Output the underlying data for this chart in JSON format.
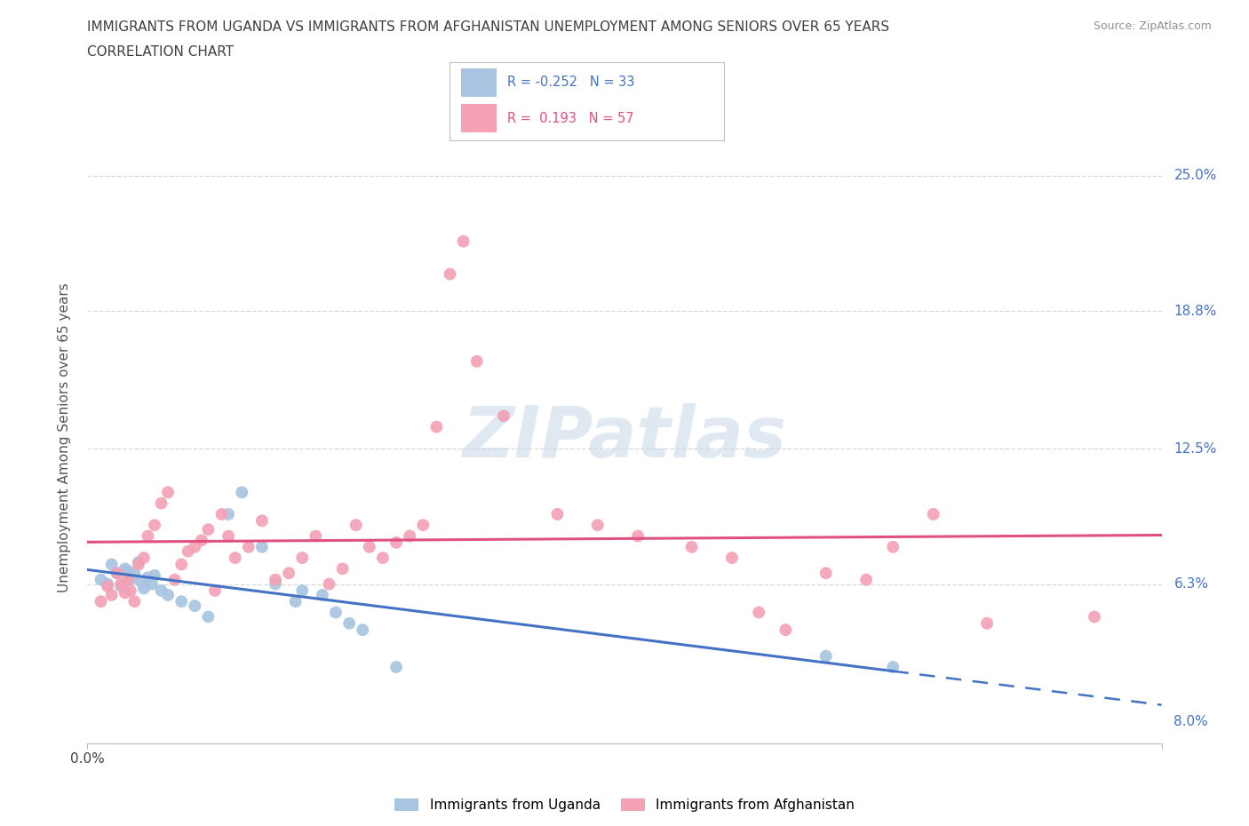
{
  "title_line1": "IMMIGRANTS FROM UGANDA VS IMMIGRANTS FROM AFGHANISTAN UNEMPLOYMENT AMONG SENIORS OVER 65 YEARS",
  "title_line2": "CORRELATION CHART",
  "source": "Source: ZipAtlas.com",
  "ylabel": "Unemployment Among Seniors over 65 years",
  "ytick_values": [
    0.0,
    6.3,
    12.5,
    18.8,
    25.0
  ],
  "ytick_labels": [
    "0.0%",
    "6.3%",
    "12.5%",
    "18.8%",
    "25.0%"
  ],
  "xlim": [
    0.0,
    8.0
  ],
  "ylim": [
    -1.0,
    27.0
  ],
  "legend_r_uganda": "-0.252",
  "legend_n_uganda": "33",
  "legend_r_afghanistan": "0.193",
  "legend_n_afghanistan": "57",
  "uganda_color": "#a8c4e0",
  "afghanistan_color": "#f4a0b5",
  "uganda_line_color": "#4472c4",
  "afghanistan_line_color": "#e05080",
  "watermark": "ZIPatlas",
  "title_color": "#404040",
  "source_color": "#909090",
  "right_label_color": "#4472c4",
  "grid_color": "#d8d8d8",
  "uganda_points": [
    [
      0.1,
      6.5
    ],
    [
      0.15,
      6.3
    ],
    [
      0.18,
      7.2
    ],
    [
      0.22,
      6.8
    ],
    [
      0.25,
      6.2
    ],
    [
      0.28,
      7.0
    ],
    [
      0.3,
      6.9
    ],
    [
      0.32,
      6.5
    ],
    [
      0.35,
      6.8
    ],
    [
      0.38,
      7.3
    ],
    [
      0.4,
      6.4
    ],
    [
      0.42,
      6.1
    ],
    [
      0.45,
      6.6
    ],
    [
      0.48,
      6.3
    ],
    [
      0.5,
      6.7
    ],
    [
      0.55,
      6.0
    ],
    [
      0.6,
      5.8
    ],
    [
      0.7,
      5.5
    ],
    [
      0.8,
      5.3
    ],
    [
      0.9,
      4.8
    ],
    [
      1.05,
      9.5
    ],
    [
      1.15,
      10.5
    ],
    [
      1.3,
      8.0
    ],
    [
      1.4,
      6.3
    ],
    [
      1.55,
      5.5
    ],
    [
      1.6,
      6.0
    ],
    [
      1.75,
      5.8
    ],
    [
      1.85,
      5.0
    ],
    [
      1.95,
      4.5
    ],
    [
      2.05,
      4.2
    ],
    [
      2.3,
      2.5
    ],
    [
      5.5,
      3.0
    ],
    [
      6.0,
      2.5
    ]
  ],
  "afghanistan_points": [
    [
      0.1,
      5.5
    ],
    [
      0.15,
      6.2
    ],
    [
      0.18,
      5.8
    ],
    [
      0.22,
      6.8
    ],
    [
      0.25,
      6.3
    ],
    [
      0.28,
      5.9
    ],
    [
      0.3,
      6.5
    ],
    [
      0.32,
      6.0
    ],
    [
      0.35,
      5.5
    ],
    [
      0.38,
      7.2
    ],
    [
      0.42,
      7.5
    ],
    [
      0.45,
      8.5
    ],
    [
      0.5,
      9.0
    ],
    [
      0.55,
      10.0
    ],
    [
      0.6,
      10.5
    ],
    [
      0.65,
      6.5
    ],
    [
      0.7,
      7.2
    ],
    [
      0.75,
      7.8
    ],
    [
      0.8,
      8.0
    ],
    [
      0.85,
      8.3
    ],
    [
      0.9,
      8.8
    ],
    [
      0.95,
      6.0
    ],
    [
      1.0,
      9.5
    ],
    [
      1.05,
      8.5
    ],
    [
      1.1,
      7.5
    ],
    [
      1.2,
      8.0
    ],
    [
      1.3,
      9.2
    ],
    [
      1.4,
      6.5
    ],
    [
      1.5,
      6.8
    ],
    [
      1.6,
      7.5
    ],
    [
      1.7,
      8.5
    ],
    [
      1.8,
      6.3
    ],
    [
      1.9,
      7.0
    ],
    [
      2.0,
      9.0
    ],
    [
      2.1,
      8.0
    ],
    [
      2.2,
      7.5
    ],
    [
      2.3,
      8.2
    ],
    [
      2.4,
      8.5
    ],
    [
      2.5,
      9.0
    ],
    [
      2.6,
      13.5
    ],
    [
      2.7,
      20.5
    ],
    [
      2.8,
      22.0
    ],
    [
      2.9,
      16.5
    ],
    [
      3.1,
      14.0
    ],
    [
      3.5,
      9.5
    ],
    [
      3.8,
      9.0
    ],
    [
      4.1,
      8.5
    ],
    [
      4.5,
      8.0
    ],
    [
      4.8,
      7.5
    ],
    [
      5.0,
      5.0
    ],
    [
      5.2,
      4.2
    ],
    [
      5.5,
      6.8
    ],
    [
      5.8,
      6.5
    ],
    [
      6.0,
      8.0
    ],
    [
      6.3,
      9.5
    ],
    [
      6.7,
      4.5
    ],
    [
      7.5,
      4.8
    ]
  ]
}
